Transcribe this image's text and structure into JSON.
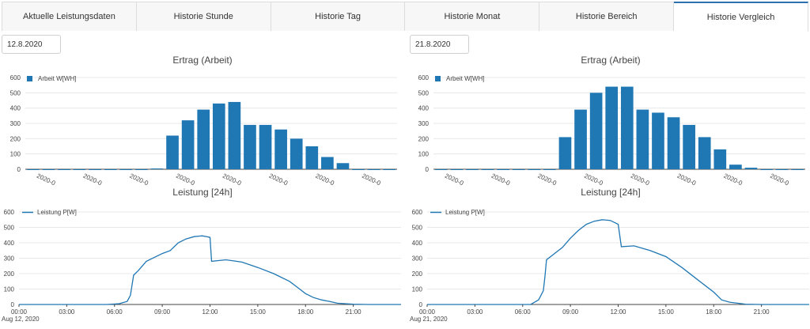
{
  "tabs": [
    {
      "label": "Aktuelle Leistungsdaten",
      "active": false
    },
    {
      "label": "Historie Stunde",
      "active": false
    },
    {
      "label": "Historie Tag",
      "active": false
    },
    {
      "label": "Historie Monat",
      "active": false
    },
    {
      "label": "Historie Bereich",
      "active": false
    },
    {
      "label": "Historie Vergleich",
      "active": true
    }
  ],
  "colors": {
    "series": "#1f77b4",
    "active_tab": "#2e6fae"
  },
  "panels": [
    {
      "date_value": "12.8.2020",
      "bar_chart": {
        "title": "Ertrag (Arbeit)"
      },
      "line_chart": {
        "title": "Leistung [24h]",
        "date_label": "Aug 12, 2020"
      }
    },
    {
      "date_value": "21.8.2020",
      "bar_chart": {
        "title": "Ertrag (Arbeit)"
      },
      "line_chart": {
        "title": "Leistung [24h]",
        "date_label": "Aug 21, 2020"
      }
    }
  ],
  "chart_data": [
    {
      "type": "bar",
      "title": "Ertrag (Arbeit)",
      "legend": "Arbeit W[WH]",
      "legend_position": "top-left",
      "x": [
        0,
        1,
        2,
        3,
        4,
        5,
        6,
        7,
        8,
        9,
        10,
        11,
        12,
        13,
        14,
        15,
        16,
        17,
        18,
        19,
        20,
        21,
        22,
        23
      ],
      "values": [
        0,
        0,
        -5,
        0,
        0,
        -5,
        0,
        0,
        5,
        220,
        320,
        390,
        430,
        440,
        290,
        290,
        260,
        200,
        150,
        80,
        40,
        0,
        0,
        -5
      ],
      "xtick_labels": [
        "2020-0",
        "2020-0",
        "2020-0",
        "2020-0",
        "2020-0",
        "2020-0",
        "2020-0",
        "2020-0"
      ],
      "ylim": [
        0,
        600
      ],
      "yticks": [
        0,
        100,
        200,
        300,
        400,
        500,
        600
      ],
      "grid": true
    },
    {
      "type": "line",
      "title": "Leistung [24h]",
      "legend": "Leistung P[W]",
      "legend_position": "top-left",
      "x": [
        0,
        5.5,
        6.3,
        6.8,
        7.0,
        7.2,
        7.5,
        8.0,
        9.0,
        9.5,
        10.0,
        10.5,
        11.0,
        11.5,
        11.8,
        12.0,
        12.1,
        13.0,
        14.0,
        15.0,
        16.0,
        17.0,
        17.5,
        18.0,
        18.5,
        19.0,
        19.5,
        20.0,
        21.0,
        22.0,
        23.0,
        24.0
      ],
      "values": [
        0,
        0,
        5,
        20,
        60,
        190,
        220,
        280,
        330,
        350,
        400,
        425,
        440,
        445,
        440,
        435,
        280,
        290,
        275,
        240,
        200,
        150,
        110,
        70,
        45,
        30,
        20,
        8,
        2,
        0,
        0,
        0
      ],
      "xticks": [
        "00:00",
        "03:00",
        "06:00",
        "09:00",
        "12:00",
        "15:00",
        "18:00",
        "21:00"
      ],
      "ylim": [
        0,
        600
      ],
      "yticks": [
        0,
        100,
        200,
        300,
        400,
        500,
        600
      ],
      "grid": true
    },
    {
      "type": "bar",
      "title": "Ertrag (Arbeit)",
      "legend": "Arbeit W[WH]",
      "legend_position": "top-left",
      "x": [
        0,
        1,
        2,
        3,
        4,
        5,
        6,
        7,
        8,
        9,
        10,
        11,
        12,
        13,
        14,
        15,
        16,
        17,
        18,
        19,
        20,
        21,
        22,
        23
      ],
      "values": [
        0,
        0,
        -5,
        0,
        -5,
        0,
        0,
        -5,
        210,
        390,
        500,
        540,
        540,
        390,
        370,
        340,
        290,
        210,
        130,
        30,
        10,
        0,
        0,
        -5
      ],
      "xtick_labels": [
        "2020-0",
        "2020-0",
        "2020-0",
        "2020-0",
        "2020-0",
        "2020-0",
        "2020-0",
        "2020-0"
      ],
      "ylim": [
        0,
        600
      ],
      "yticks": [
        0,
        100,
        200,
        300,
        400,
        500,
        600
      ],
      "grid": true
    },
    {
      "type": "line",
      "title": "Leistung [24h]",
      "legend": "Leistung P[W]",
      "legend_position": "top-left",
      "x": [
        0,
        6.5,
        7.0,
        7.3,
        7.4,
        7.5,
        8.0,
        8.5,
        9.0,
        9.5,
        10.0,
        10.5,
        11.0,
        11.5,
        12.0,
        12.2,
        13.0,
        14.0,
        15.0,
        16.0,
        17.0,
        18.0,
        18.5,
        19.0,
        20.0,
        21.0,
        22.0,
        23.0,
        24.0
      ],
      "values": [
        0,
        0,
        30,
        90,
        180,
        290,
        330,
        370,
        430,
        480,
        520,
        540,
        550,
        545,
        520,
        375,
        380,
        350,
        310,
        240,
        160,
        80,
        30,
        15,
        2,
        0,
        0,
        0,
        0
      ],
      "xticks": [
        "00:00",
        "03:00",
        "06:00",
        "09:00",
        "12:00",
        "15:00",
        "18:00",
        "21:00"
      ],
      "ylim": [
        0,
        600
      ],
      "yticks": [
        0,
        100,
        200,
        300,
        400,
        500,
        600
      ],
      "grid": true
    }
  ]
}
